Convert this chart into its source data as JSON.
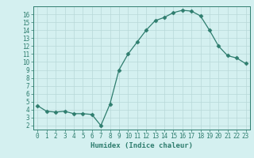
{
  "x": [
    0,
    1,
    2,
    3,
    4,
    5,
    6,
    7,
    8,
    9,
    10,
    11,
    12,
    13,
    14,
    15,
    16,
    17,
    18,
    19,
    20,
    21,
    22,
    23
  ],
  "y": [
    4.5,
    3.8,
    3.7,
    3.8,
    3.5,
    3.5,
    3.4,
    2.0,
    4.7,
    9.0,
    11.0,
    12.5,
    14.0,
    15.2,
    15.6,
    16.2,
    16.5,
    16.4,
    15.8,
    14.0,
    12.0,
    10.8,
    10.5,
    9.8
  ],
  "line_color": "#2e7d6e",
  "marker": "D",
  "marker_size": 2.5,
  "bg_color": "#d4f0f0",
  "grid_color": "#b8d8d8",
  "xlabel": "Humidex (Indice chaleur)",
  "xlim": [
    -0.5,
    23.5
  ],
  "ylim": [
    1.5,
    17.0
  ],
  "yticks": [
    2,
    3,
    4,
    5,
    6,
    7,
    8,
    9,
    10,
    11,
    12,
    13,
    14,
    15,
    16
  ],
  "xticks": [
    0,
    1,
    2,
    3,
    4,
    5,
    6,
    7,
    8,
    9,
    10,
    11,
    12,
    13,
    14,
    15,
    16,
    17,
    18,
    19,
    20,
    21,
    22,
    23
  ],
  "tick_color": "#2e7d6e",
  "axis_color": "#2e7d6e",
  "label_fontsize": 6.5,
  "tick_fontsize": 5.5
}
